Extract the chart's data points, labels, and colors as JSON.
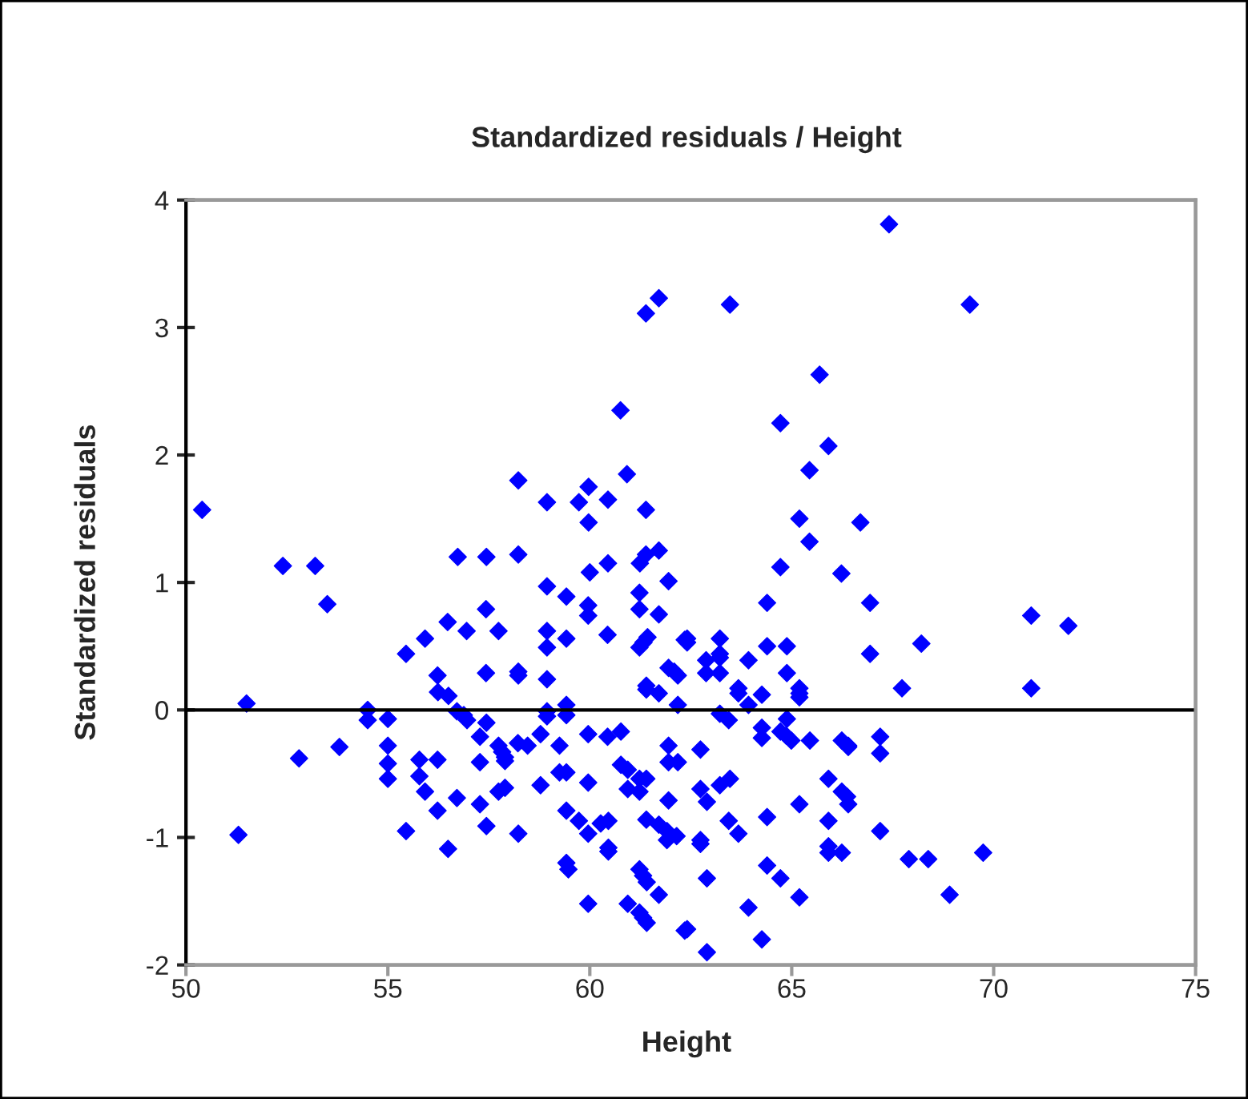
{
  "chart_data": {
    "type": "scatter",
    "title": "Standardized residuals / Height",
    "xlabel": "Height",
    "ylabel": "Standardized residuals",
    "xlim": [
      50,
      75
    ],
    "xticks": [
      50,
      55,
      60,
      65,
      70,
      75
    ],
    "ylim": [
      -2,
      4
    ],
    "yticks": [
      -2,
      -1,
      0,
      1,
      2,
      3,
      4
    ],
    "grid": false,
    "marker": "diamond",
    "ref_lines": [
      {
        "axis": "y",
        "value": 0
      }
    ],
    "series": [
      {
        "color": "#0000ff",
        "x": [
          50.4,
          51.3,
          51.5,
          52.4,
          52.8,
          53.2,
          53.5,
          53.8,
          54.5,
          54.5,
          55.0,
          55.0,
          55.0,
          55.0,
          55.45,
          55.45,
          55.78,
          55.78,
          55.92,
          55.92,
          56.23,
          56.24,
          56.5,
          56.23,
          56.23,
          56.48,
          56.49,
          56.71,
          56.88,
          56.96,
          56.71,
          56.95,
          57.28,
          57.28,
          57.28,
          57.44,
          57.43,
          57.43,
          57.44,
          57.74,
          57.74,
          57.83,
          57.9,
          57.9,
          57.74,
          57.9,
          58.23,
          58.23,
          58.22,
          58.46,
          58.23,
          58.78,
          58.78,
          58.94,
          58.94,
          58.94,
          58.94,
          58.94,
          58.94,
          59.25,
          59.25,
          59.42,
          59.42,
          59.42,
          59.47,
          59.42,
          59.42,
          59.42,
          59.42,
          59.73,
          60.0,
          59.96,
          59.96,
          59.96,
          59.96,
          59.96,
          59.96,
          60.27,
          60.46,
          60.46,
          60.46,
          60.44,
          60.44,
          60.77,
          60.77,
          60.94,
          60.94,
          60.94,
          61.23,
          61.23,
          61.23,
          61.33,
          61.43,
          61.23,
          61.4,
          61.23,
          61.23,
          61.32,
          61.41,
          61.23,
          61.32,
          61.41,
          61.4,
          61.4,
          61.4,
          61.71,
          61.71,
          61.71,
          61.91,
          62.15,
          61.91,
          61.71,
          61.95,
          61.95,
          62.09,
          62.18,
          61.95,
          61.95,
          62.18,
          61.95,
          62.18,
          62.35,
          62.35,
          58.23,
          58.94,
          59.73,
          59.97,
          59.97,
          60.45,
          60.92,
          60.76,
          61.39,
          61.71,
          61.39,
          56.73,
          57.44,
          58.23,
          60.45,
          61.24,
          61.39,
          61.71,
          67.41,
          63.47,
          69.41,
          65.69,
          64.72,
          65.91,
          65.44,
          65.19,
          66.7,
          65.44,
          64.72,
          66.23,
          64.39,
          66.94,
          70.93,
          71.85,
          62.41,
          62.41,
          63.22,
          62.88,
          63.22,
          63.22,
          62.88,
          63.22,
          63.93,
          64.39,
          64.88,
          64.88,
          66.94,
          68.21,
          63.68,
          63.68,
          64.26,
          63.93,
          65.19,
          65.19,
          65.19,
          67.73,
          70.93,
          63.22,
          63.44,
          64.88,
          64.26,
          64.26,
          64.72,
          64.86,
          64.99,
          65.45,
          66.24,
          66.4,
          66.4,
          67.19,
          67.19,
          62.74,
          65.91,
          63.47,
          63.22,
          62.74,
          62.9,
          66.24,
          66.37,
          66.4,
          65.19,
          64.39,
          63.44,
          63.68,
          65.91,
          67.19,
          62.74,
          62.74,
          65.91,
          65.91,
          66.24,
          67.9,
          68.38,
          69.74,
          64.39,
          64.72,
          62.9,
          65.19,
          68.91,
          63.93,
          62.41,
          64.26,
          62.9
        ],
        "values": [
          1.57,
          -0.98,
          0.05,
          1.13,
          -0.38,
          1.13,
          0.83,
          -0.29,
          0.0,
          -0.08,
          -0.07,
          -0.28,
          -0.42,
          -0.54,
          0.44,
          -0.95,
          -0.39,
          -0.52,
          0.56,
          -0.64,
          0.27,
          0.14,
          0.11,
          -0.39,
          -0.79,
          0.69,
          -1.09,
          -0.01,
          -0.04,
          -0.08,
          -0.69,
          0.62,
          -0.21,
          -0.41,
          -0.74,
          -0.1,
          0.29,
          0.79,
          -0.91,
          0.62,
          -0.28,
          -0.33,
          -0.37,
          -0.4,
          -0.64,
          -0.61,
          0.3,
          0.27,
          -0.26,
          -0.28,
          -0.97,
          -0.19,
          -0.59,
          0.97,
          0.62,
          0.49,
          0.24,
          -0.01,
          -0.05,
          -0.28,
          -0.49,
          -0.49,
          -0.79,
          -1.2,
          -1.25,
          0.89,
          0.56,
          0.04,
          -0.04,
          -0.87,
          1.08,
          0.82,
          0.74,
          -0.19,
          -0.57,
          -0.97,
          -1.52,
          -0.89,
          -0.87,
          -1.08,
          -1.11,
          0.59,
          -0.21,
          -0.17,
          -0.43,
          -0.47,
          -0.62,
          -1.52,
          0.92,
          0.79,
          0.49,
          0.53,
          0.57,
          -0.54,
          -0.54,
          -0.64,
          -1.25,
          -1.3,
          -1.35,
          -1.59,
          -1.63,
          -1.67,
          0.19,
          0.16,
          -0.86,
          0.75,
          0.13,
          -0.9,
          -0.95,
          -0.99,
          -1.02,
          -1.45,
          1.01,
          0.33,
          0.3,
          0.27,
          -0.28,
          -0.41,
          -0.41,
          -0.71,
          0.04,
          0.55,
          -1.73,
          1.8,
          1.63,
          1.63,
          1.75,
          1.47,
          1.65,
          1.85,
          2.35,
          3.11,
          3.23,
          1.57,
          1.2,
          1.2,
          1.22,
          1.15,
          1.15,
          1.22,
          1.25,
          3.81,
          3.18,
          3.18,
          2.63,
          2.25,
          2.07,
          1.88,
          1.5,
          1.47,
          1.32,
          1.12,
          1.07,
          0.84,
          0.84,
          0.74,
          0.66,
          0.56,
          0.53,
          0.56,
          0.39,
          0.44,
          0.41,
          0.29,
          0.29,
          0.39,
          0.5,
          0.5,
          0.29,
          0.44,
          0.52,
          0.17,
          0.13,
          0.12,
          0.04,
          0.17,
          0.13,
          0.1,
          0.17,
          0.17,
          -0.03,
          -0.08,
          -0.07,
          -0.14,
          -0.22,
          -0.17,
          -0.2,
          -0.24,
          -0.24,
          -0.24,
          -0.28,
          -0.29,
          -0.21,
          -0.34,
          -0.31,
          -0.54,
          -0.54,
          -0.59,
          -0.62,
          -0.72,
          -0.64,
          -0.68,
          -0.74,
          -0.74,
          -0.84,
          -0.87,
          -0.97,
          -0.87,
          -0.95,
          -1.02,
          -1.05,
          -1.07,
          -1.12,
          -1.12,
          -1.17,
          -1.17,
          -1.12,
          -1.22,
          -1.32,
          -1.32,
          -1.47,
          -1.45,
          -1.55,
          -1.72,
          -1.8,
          -1.9
        ]
      }
    ]
  }
}
